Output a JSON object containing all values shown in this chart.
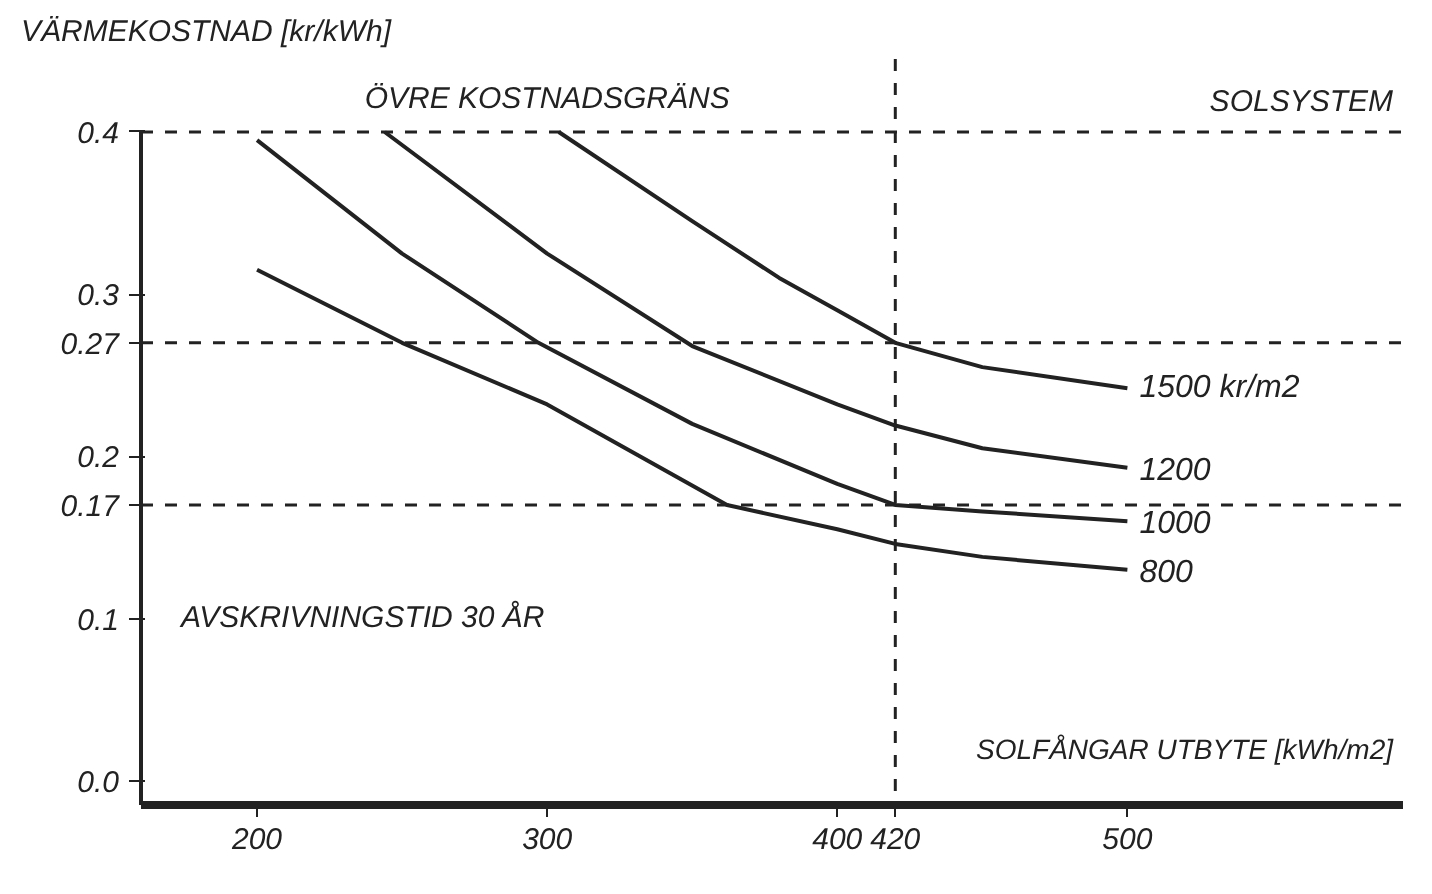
{
  "chart_data": {
    "type": "line",
    "ylabel": "VÄRMEKOSTNAD [kr/kWh]",
    "xlabel": "SOLFÅNGAR UTBYTE [kWh/m2]",
    "annotations": [
      "SOLSYSTEM",
      "AVSKRIVNINGSTID 30 ÅR"
    ],
    "series": [
      {
        "name": "1500 kr/m2",
        "color": "#222222",
        "x": [
          304,
          350,
          380,
          400,
          420,
          450,
          500
        ],
        "values": [
          0.4,
          0.345,
          0.31,
          0.29,
          0.27,
          0.255,
          0.242
        ]
      },
      {
        "name": "1200",
        "color": "#222222",
        "x": [
          244,
          300,
          350,
          400,
          420,
          450,
          500
        ],
        "values": [
          0.4,
          0.325,
          0.268,
          0.232,
          0.219,
          0.205,
          0.193
        ]
      },
      {
        "name": "1000",
        "color": "#222222",
        "x": [
          200,
          250,
          297,
          350,
          400,
          420,
          450,
          500
        ],
        "values": [
          0.395,
          0.325,
          0.27,
          0.22,
          0.183,
          0.17,
          0.166,
          0.16
        ]
      },
      {
        "name": "800",
        "color": "#222222",
        "x": [
          200,
          250,
          300,
          362,
          400,
          420,
          450,
          500
        ],
        "values": [
          0.315,
          0.27,
          0.232,
          0.17,
          0.155,
          0.146,
          0.138,
          0.13
        ]
      }
    ],
    "xlim": [
      160,
      595
    ],
    "ylim": [
      -0.015,
      0.445
    ],
    "xticks": [
      200,
      300,
      400,
      420,
      500
    ],
    "yticks": [
      {
        "value": 0,
        "label": "0.0"
      },
      0.1,
      0.17,
      0.2,
      0.27,
      0.3,
      0.4
    ],
    "ref_lines": [
      {
        "axis": "y",
        "value": 0.4,
        "label": "ÖVRE KOSTNADSGRÄNS",
        "line_style": "dashed"
      },
      {
        "axis": "y",
        "value": 0.27,
        "line_style": "dashed"
      },
      {
        "axis": "y",
        "value": 0.17,
        "line_style": "dashed"
      },
      {
        "axis": "x",
        "value": 420,
        "line_style": "dashed"
      }
    ],
    "grid": false,
    "marker": "none",
    "line_style": "solid"
  }
}
